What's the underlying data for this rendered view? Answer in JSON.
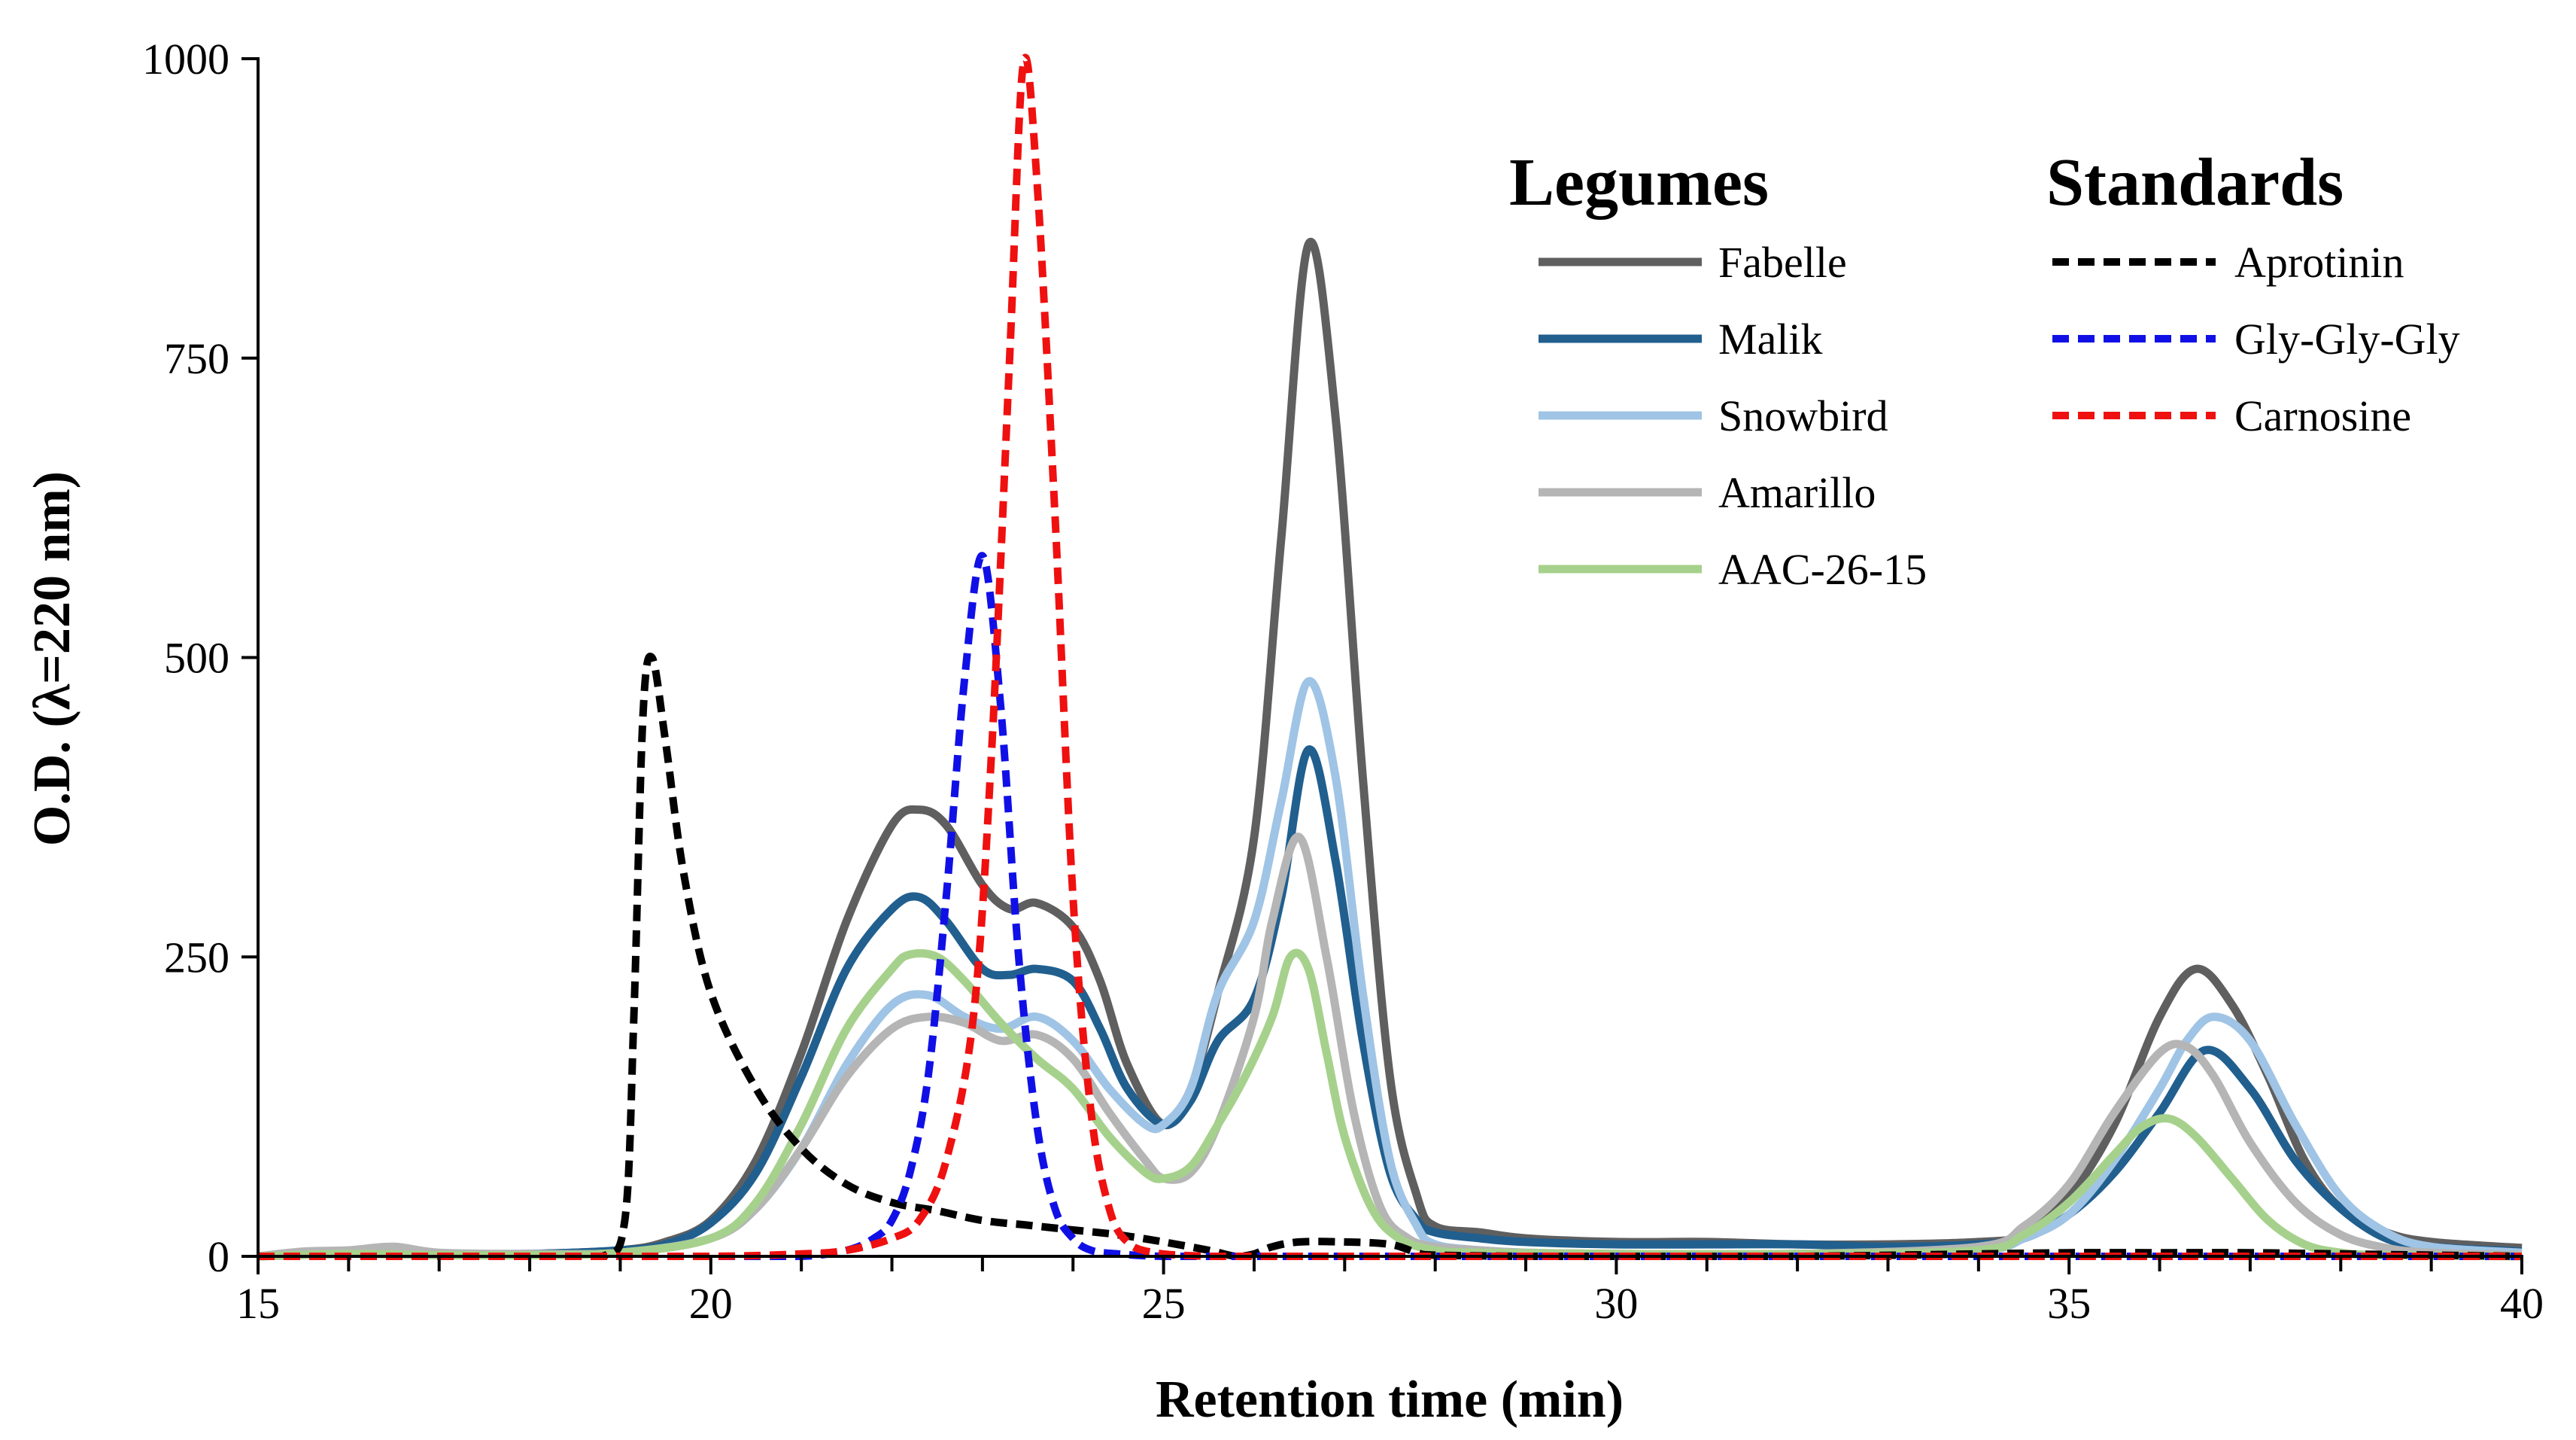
{
  "chart_data": {
    "type": "line",
    "xlabel": "Retention time (min)",
    "ylabel": "O.D. (λ=220 nm)",
    "xlim": [
      15,
      40
    ],
    "ylim": [
      0,
      1000
    ],
    "xticks": [
      15,
      20,
      25,
      30,
      35,
      40
    ],
    "yticks": [
      0,
      250,
      500,
      750,
      1000
    ],
    "legend_groups": [
      {
        "title": "Legumes",
        "entries": [
          "Fabelle",
          "Malik",
          "Snowbird",
          "Amarillo",
          "AAC-26-15"
        ]
      },
      {
        "title": "Standards",
        "entries": [
          "Aprotinin",
          "Gly-Gly-Gly",
          "Carnosine"
        ]
      }
    ],
    "series": [
      {
        "name": "Fabelle",
        "group": "Legumes",
        "color": "#5f5f5f",
        "style": "solid",
        "x": [
          15,
          16,
          17,
          18,
          19,
          19.5,
          20,
          20.5,
          21,
          21.5,
          22,
          22.3,
          22.6,
          23,
          23.3,
          23.6,
          24,
          24.3,
          24.6,
          25,
          25.3,
          25.6,
          26,
          26.3,
          26.6,
          26.9,
          27.2,
          27.5,
          27.8,
          28,
          28.5,
          29,
          30,
          31,
          32,
          33,
          34,
          34.5,
          35,
          35.5,
          36,
          36.4,
          36.8,
          37.2,
          37.6,
          38,
          38.5,
          39,
          40
        ],
        "y": [
          0,
          3,
          2,
          2,
          5,
          12,
          30,
          80,
          170,
          280,
          360,
          373,
          360,
          310,
          290,
          295,
          275,
          230,
          160,
          110,
          140,
          220,
          350,
          600,
          845,
          700,
          400,
          150,
          50,
          25,
          20,
          15,
          12,
          12,
          10,
          10,
          12,
          18,
          50,
          110,
          200,
          240,
          210,
          150,
          80,
          40,
          20,
          12,
          7
        ]
      },
      {
        "name": "Malik",
        "group": "Legumes",
        "color": "#215f8f",
        "style": "solid",
        "x": [
          15,
          16,
          17,
          18,
          19,
          19.5,
          20,
          20.5,
          21,
          21.5,
          22,
          22.3,
          22.6,
          23,
          23.3,
          23.6,
          24,
          24.3,
          24.6,
          25,
          25.3,
          25.6,
          26,
          26.3,
          26.6,
          26.9,
          27.2,
          27.5,
          27.8,
          28,
          28.5,
          29,
          30,
          31,
          32,
          33,
          34,
          34.5,
          35,
          35.5,
          36,
          36.5,
          37,
          37.5,
          38,
          38.5,
          39,
          40
        ],
        "y": [
          0,
          3,
          2,
          2,
          5,
          10,
          28,
          70,
          150,
          240,
          290,
          300,
          280,
          240,
          235,
          240,
          230,
          190,
          140,
          110,
          130,
          180,
          215,
          300,
          423,
          330,
          180,
          70,
          30,
          20,
          15,
          12,
          10,
          10,
          10,
          8,
          10,
          15,
          35,
          70,
          120,
          172,
          140,
          80,
          40,
          15,
          8,
          4
        ]
      },
      {
        "name": "Snowbird",
        "group": "Legumes",
        "color": "#9fc4e5",
        "style": "solid",
        "x": [
          15,
          16,
          17,
          18,
          19,
          20,
          20.5,
          21,
          21.5,
          22,
          22.4,
          22.8,
          23.2,
          23.6,
          24,
          24.4,
          24.8,
          25,
          25.3,
          25.6,
          26,
          26.3,
          26.6,
          26.9,
          27.2,
          27.5,
          27.8,
          28,
          28.5,
          29,
          30,
          32,
          34,
          34.5,
          35,
          35.5,
          36,
          36.3,
          36.6,
          37,
          37.5,
          38,
          38.5,
          39,
          40
        ],
        "y": [
          0,
          2,
          2,
          2,
          3,
          15,
          40,
          90,
          160,
          210,
          218,
          200,
          190,
          200,
          180,
          140,
          110,
          110,
          140,
          220,
          280,
          380,
          480,
          400,
          220,
          80,
          25,
          10,
          5,
          3,
          2,
          2,
          5,
          15,
          35,
          80,
          140,
          180,
          200,
          180,
          110,
          50,
          20,
          8,
          3
        ]
      },
      {
        "name": "Amarillo",
        "group": "Legumes",
        "color": "#b5b5b5",
        "style": "solid",
        "x": [
          15,
          15.5,
          16,
          16.5,
          17,
          18,
          19,
          20,
          20.5,
          21,
          21.5,
          22,
          22.4,
          22.8,
          23.2,
          23.6,
          24,
          24.4,
          24.8,
          25,
          25.3,
          25.6,
          26,
          26.2,
          26.5,
          26.8,
          27.1,
          27.4,
          27.7,
          28,
          28.5,
          29,
          30,
          32,
          34,
          34.5,
          35,
          35.5,
          36,
          36.3,
          36.6,
          37,
          37.5,
          38,
          38.5,
          39,
          40
        ],
        "y": [
          0,
          4,
          5,
          8,
          3,
          2,
          3,
          15,
          40,
          90,
          150,
          190,
          200,
          195,
          180,
          185,
          165,
          120,
          80,
          65,
          70,
          110,
          200,
          280,
          350,
          250,
          120,
          40,
          15,
          8,
          5,
          3,
          2,
          2,
          8,
          25,
          60,
          120,
          170,
          175,
          150,
          95,
          45,
          18,
          7,
          3,
          1
        ]
      },
      {
        "name": "AAC-26-15",
        "group": "Legumes",
        "color": "#a6d18c",
        "style": "solid",
        "x": [
          15,
          16,
          17,
          18,
          19,
          20,
          20.5,
          21,
          21.5,
          22,
          22.2,
          22.5,
          22.8,
          23.2,
          23.6,
          24,
          24.4,
          24.8,
          25,
          25.3,
          25.6,
          25.9,
          26.2,
          26.4,
          26.6,
          26.8,
          27,
          27.3,
          27.6,
          28,
          28.5,
          30,
          32,
          34,
          34.5,
          35,
          35.5,
          35.8,
          36.1,
          36.4,
          36.8,
          37.2,
          37.6,
          38,
          38.5,
          40
        ],
        "y": [
          0,
          2,
          1,
          1,
          3,
          15,
          45,
          110,
          190,
          240,
          252,
          250,
          230,
          195,
          165,
          140,
          100,
          70,
          65,
          75,
          110,
          150,
          200,
          250,
          240,
          170,
          100,
          40,
          15,
          5,
          3,
          2,
          2,
          5,
          18,
          45,
          85,
          108,
          115,
          100,
          65,
          30,
          10,
          3,
          1,
          0
        ]
      },
      {
        "name": "Aprotinin",
        "group": "Standards",
        "color": "#000000",
        "style": "dashed",
        "x": [
          15,
          16,
          17,
          18,
          18.8,
          19.05,
          19.15,
          19.25,
          19.35,
          19.5,
          19.7,
          20,
          20.5,
          21,
          21.5,
          22,
          22.5,
          23,
          23.5,
          24,
          24.5,
          25,
          25.5,
          25.8,
          26,
          26.2,
          26.5,
          27,
          27.5,
          27.8,
          28,
          29,
          30,
          32,
          34,
          35,
          36,
          37,
          38,
          39,
          40
        ],
        "y": [
          0,
          0,
          0,
          0,
          0,
          30,
          200,
          450,
          500,
          430,
          320,
          220,
          140,
          90,
          60,
          45,
          38,
          30,
          26,
          22,
          18,
          12,
          5,
          0,
          2,
          8,
          12,
          12,
          10,
          3,
          1,
          0,
          0,
          0,
          2,
          3,
          3,
          3,
          2,
          1,
          0
        ]
      },
      {
        "name": "Gly-Gly-Gly",
        "group": "Standards",
        "color": "#1010e6",
        "style": "dashed",
        "x": [
          15,
          18,
          20,
          21,
          21.5,
          21.8,
          22,
          22.2,
          22.4,
          22.6,
          22.8,
          23,
          23.2,
          23.4,
          23.6,
          23.8,
          24,
          24.2,
          24.5,
          25,
          26,
          28,
          30,
          32,
          34,
          35,
          36,
          37,
          38,
          40
        ],
        "y": [
          0,
          0,
          0,
          0,
          5,
          15,
          30,
          70,
          150,
          300,
          480,
          585,
          460,
          250,
          110,
          40,
          15,
          5,
          2,
          0,
          0,
          0,
          0,
          0,
          0,
          0,
          0,
          0,
          0,
          0
        ]
      },
      {
        "name": "Carnosine",
        "group": "Standards",
        "color": "#ef1010",
        "style": "dashed",
        "x": [
          15,
          18,
          20,
          21,
          21.5,
          22,
          22.3,
          22.6,
          22.9,
          23.1,
          23.3,
          23.45,
          23.6,
          23.8,
          24,
          24.2,
          24.4,
          24.6,
          24.9,
          25.5,
          26,
          28,
          30,
          32,
          34,
          35,
          36,
          37,
          38,
          40
        ],
        "y": [
          0,
          0,
          0,
          2,
          5,
          15,
          30,
          80,
          200,
          420,
          750,
          995,
          900,
          620,
          300,
          120,
          40,
          12,
          3,
          0,
          0,
          0,
          0,
          0,
          0,
          0,
          0,
          0,
          0,
          0
        ]
      }
    ]
  }
}
